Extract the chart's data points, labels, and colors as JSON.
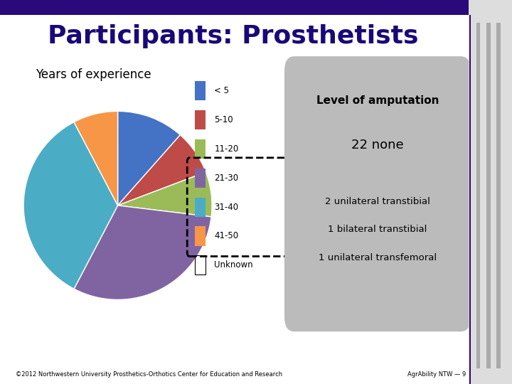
{
  "title": "Participants: Prosthetists",
  "title_color": "#1a0878",
  "title_fontsize": 26,
  "subtitle": "Years of experience",
  "subtitle_fontsize": 12,
  "pie_labels": [
    "< 5",
    "5-10",
    "11-20",
    "21-30",
    "31-40",
    "41-50",
    "Unknown"
  ],
  "pie_values": [
    3,
    2,
    2,
    8,
    9,
    2,
    0.001
  ],
  "pie_colors": [
    "#4472C4",
    "#BE4B48",
    "#9BBB59",
    "#8064A2",
    "#4BACC6",
    "#F79646",
    "#FFFFFF"
  ],
  "box_title": "Level of amputation",
  "box_line1": "22 none",
  "box_lines": [
    "2 unilateral transtibial",
    "1 bilateral transtibial",
    "1 unilateral transfemoral"
  ],
  "box_color": "#BBBBBB",
  "footer_left": "©2012 Northwestern University Prosthetics-Orthotics Center for Education and Research",
  "footer_right": "AgrAbility NTW — 9",
  "background_color": "#FFFFFF",
  "top_bar_color": "#2a0a7a",
  "right_bar_color": "#999999",
  "right_bar2_color": "#555555"
}
